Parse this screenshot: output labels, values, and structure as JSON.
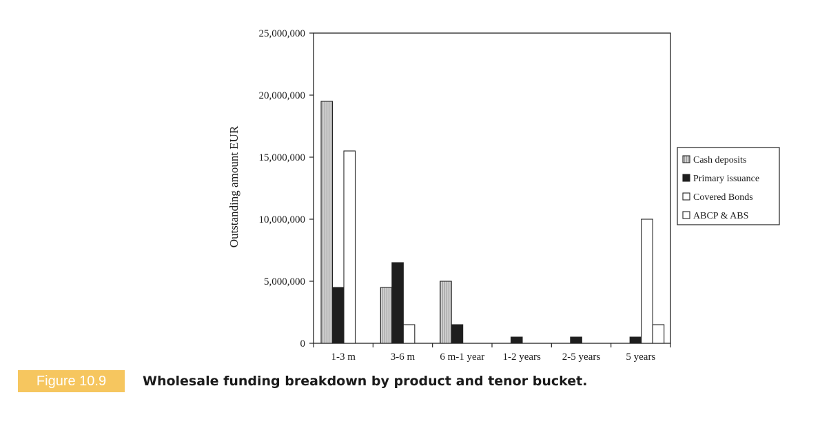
{
  "chart_data": {
    "type": "bar",
    "ylabel": "Outstanding amount EUR",
    "xlabel": "",
    "ylim": [
      0,
      25000000
    ],
    "yticks": [
      0,
      5000000,
      10000000,
      15000000,
      20000000,
      25000000
    ],
    "ytick_labels": [
      "0",
      "5,000,000",
      "10,000,000",
      "15,000,000",
      "20,000,000",
      "25,000,000"
    ],
    "categories": [
      "1-3 m",
      "3-6 m",
      "6 m-1 year",
      "1-2 years",
      "2-5 years",
      "5 years"
    ],
    "series": [
      {
        "name": "Cash deposits",
        "values": [
          19500000,
          4500000,
          5000000,
          0,
          0,
          0
        ],
        "fill": "#c8c8c8",
        "pattern": "hatched-gray"
      },
      {
        "name": "Primary issuance",
        "values": [
          4500000,
          6500000,
          1500000,
          500000,
          500000,
          500000
        ],
        "fill": "#1e1e1e",
        "pattern": "solid-black"
      },
      {
        "name": "Covered Bonds",
        "values": [
          15500000,
          1500000,
          0,
          0,
          0,
          10000000
        ],
        "fill": "#ffffff",
        "pattern": "white"
      },
      {
        "name": "ABCP & ABS",
        "values": [
          0,
          0,
          0,
          0,
          0,
          1500000
        ],
        "fill": "#ffffff",
        "pattern": "white"
      }
    ],
    "legend_position": "right",
    "grid": false
  },
  "caption": {
    "label": "Figure 10.9",
    "text": "Wholesale funding breakdown by product and tenor bucket."
  },
  "colors": {
    "caption_badge": "#f6c65f",
    "caption_label_text": "#ffffff"
  }
}
